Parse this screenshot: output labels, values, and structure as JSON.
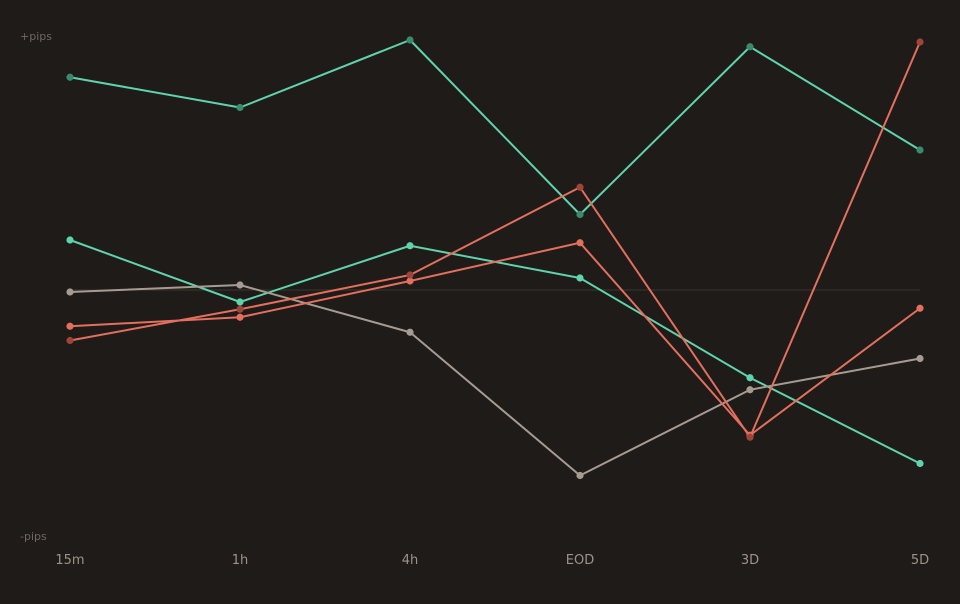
{
  "chart_data": {
    "type": "line",
    "title": "",
    "xlabel": "",
    "ylabel": "",
    "y_top_label": "+pips",
    "y_bottom_label": "-pips",
    "categories": [
      "15m",
      "1h",
      "4h",
      "EOD",
      "3D",
      "5D"
    ],
    "ylim": [
      -100,
      100
    ],
    "zero_line": 0,
    "grid": false,
    "legend": "none",
    "series": [
      {
        "color": "#5fd3ad",
        "point_color": "#3c8a6e",
        "values": [
          85.1,
          73.0,
          100.0,
          30.2,
          97.3,
          56.0
        ]
      },
      {
        "color": "#5fd3ad",
        "point_color": "#5fd3ad",
        "values": [
          20.0,
          -4.8,
          17.7,
          4.8,
          -35.1,
          -69.4
        ]
      },
      {
        "color": "#a69b92",
        "point_color": "#a69b92",
        "values": [
          -0.8,
          2.0,
          -16.9,
          -74.2,
          -39.9,
          -27.4
        ]
      },
      {
        "color": "#e36f5e",
        "point_color": "#e36f5e",
        "values": [
          -14.5,
          -10.9,
          3.6,
          18.9,
          -58.1,
          -7.3
        ]
      },
      {
        "color": "#e36f5e",
        "point_color": "#a0443a",
        "values": [
          -20.2,
          -7.7,
          6.0,
          41.1,
          -58.9,
          99.2
        ]
      }
    ]
  }
}
